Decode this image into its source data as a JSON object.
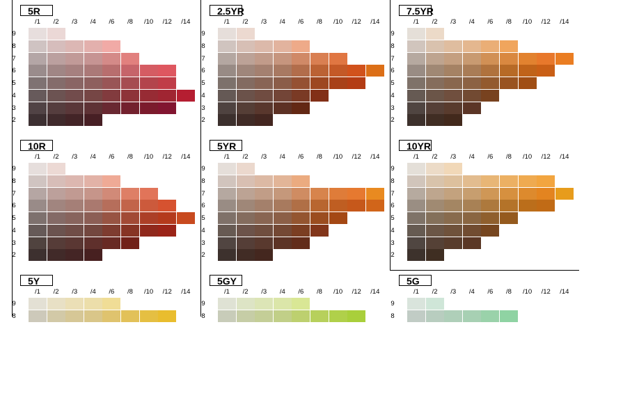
{
  "chart_data": {
    "type": "heatmap",
    "title": "",
    "xlabel": "",
    "ylabel": "",
    "chroma_labels": [
      "/1",
      "/2",
      "/3",
      "/4",
      "/6",
      "/8",
      "/10",
      "/12",
      "/14"
    ],
    "value_labels": [
      "9",
      "8",
      "7",
      "6",
      "5",
      "4",
      "3",
      "2"
    ],
    "panels": [
      {
        "hue": "5R",
        "rows": [
          [
            "#e7dedd",
            "#ebd8d6"
          ],
          [
            "#cfc3c2",
            "#d6bdbc",
            "#dcb7b4",
            "#e3b0ad",
            "#f1aaa6"
          ],
          [
            "#b4a6a6",
            "#bba09f",
            "#c19a98",
            "#c69493",
            "#d48a88",
            "#e1807e"
          ],
          [
            "#9a8c8c",
            "#a08685",
            "#a6807f",
            "#ab7978",
            "#b86e6e",
            "#c6646a",
            "#d55c63",
            "#de5760"
          ],
          [
            "#7f7272",
            "#846c6b",
            "#8a6564",
            "#8e5f5e",
            "#995556",
            "#a64c51",
            "#b3444c",
            "#c03d48"
          ],
          [
            "#675a5b",
            "#6c5352",
            "#724c4c",
            "#764645",
            "#823b3e",
            "#8e3339",
            "#972b34",
            "#a02532",
            "#b51e31"
          ],
          [
            "#514345",
            "#553d3e",
            "#5a3739",
            "#5e3235",
            "#692831",
            "#73212e",
            "#7b1b2c",
            "#821530"
          ],
          [
            "#3d3032",
            "#402a2c",
            "#432427",
            "#471f24"
          ]
        ]
      },
      {
        "hue": "2.5YR",
        "rows": [
          [
            "#e6deda",
            "#ecd9d0"
          ],
          [
            "#d0c4bf",
            "#d7bfb5",
            "#dcb9aa",
            "#e2b39e",
            "#eeaa89"
          ],
          [
            "#b4a7a1",
            "#bca297",
            "#c19b8a",
            "#c6957e",
            "#d08967",
            "#d97f52",
            "#e07642"
          ],
          [
            "#988b85",
            "#9f867b",
            "#a48070",
            "#a87962",
            "#b26d4b",
            "#bb6234",
            "#c45927",
            "#d1521c",
            "#dc6f17"
          ],
          [
            "#7d716b",
            "#836b61",
            "#886455",
            "#8b5d49",
            "#955133",
            "#9d4720",
            "#a84118",
            "#b33c14"
          ],
          [
            "#655955",
            "#6b524a",
            "#704c41",
            "#734537",
            "#7a3a25",
            "#823017"
          ],
          [
            "#4f4340",
            "#553e36",
            "#59372d",
            "#5d3124",
            "#632814"
          ],
          [
            "#3c302d",
            "#402b26",
            "#432620"
          ]
        ]
      },
      {
        "hue": "7.5YR",
        "rows": [
          [
            "#e5dfd8",
            "#ecdac8"
          ],
          [
            "#d1c5bd",
            "#d9c2ae",
            "#dfbd9f",
            "#e4b78f",
            "#eaae76",
            "#f0a55d"
          ],
          [
            "#b6a9a0",
            "#bea48f",
            "#c49f80",
            "#c89a71",
            "#d19055",
            "#d98840",
            "#e2822f",
            "#e8782b",
            "#ea7d22"
          ],
          [
            "#998c84",
            "#a08874",
            "#a58264",
            "#a97c56",
            "#b0723d",
            "#b76a26",
            "#c06319",
            "#c95f16"
          ],
          [
            "#7f7269",
            "#856d5c",
            "#89674e",
            "#8c6243",
            "#935a2e",
            "#995320",
            "#a04e14"
          ],
          [
            "#665a53",
            "#6b5548",
            "#704f3e",
            "#724a32",
            "#78421f"
          ],
          [
            "#504541",
            "#553f36",
            "#593b2d",
            "#5b3526"
          ],
          [
            "#3d312c",
            "#402d23",
            "#42291c"
          ]
        ]
      },
      {
        "hue": "10R",
        "rows": [
          [
            "#e6dedc",
            "#ecd9d4"
          ],
          [
            "#d0c4c1",
            "#d7bdb8",
            "#dcb7b0",
            "#e2b2a7",
            "#efaa96"
          ],
          [
            "#b5a6a3",
            "#bca09b",
            "#c19a92",
            "#c6958a",
            "#d18a78",
            "#de7f66",
            "#e17459"
          ],
          [
            "#998b88",
            "#a1857f",
            "#a57f77",
            "#aa796f",
            "#b66e5b",
            "#c2644a",
            "#cc5a3c",
            "#d65230"
          ],
          [
            "#7e716e",
            "#846a66",
            "#88645d",
            "#8c5e55",
            "#985443",
            "#a24a35",
            "#ac3f27",
            "#b43a1c",
            "#c84a1f"
          ],
          [
            "#665a58",
            "#6b534f",
            "#704d47",
            "#73473f",
            "#7e3c30",
            "#873424",
            "#90291c",
            "#9b2418"
          ],
          [
            "#50433f",
            "#563c38",
            "#5a3733",
            "#5f302c",
            "#682a24",
            "#712018"
          ],
          [
            "#3d302f",
            "#412a29",
            "#442525",
            "#472020"
          ]
        ]
      },
      {
        "hue": "5YR",
        "rows": [
          [
            "#e5ded9",
            "#ebd8cd"
          ],
          [
            "#d1c4bd",
            "#d8bfb2",
            "#dcb9a4",
            "#e2b598",
            "#ebab80"
          ],
          [
            "#b5a8a0",
            "#bca394",
            "#c19d87",
            "#c5987b",
            "#cf8c62",
            "#d7844c",
            "#df7c39",
            "#e67930",
            "#e98a20"
          ],
          [
            "#998c84",
            "#9f8778",
            "#a4806b",
            "#a87a5e",
            "#b06f46",
            "#b86630",
            "#bf5e22",
            "#c6581b",
            "#d1651a"
          ],
          [
            "#7f7169",
            "#846c5e",
            "#896552",
            "#8c5f47",
            "#945530",
            "#9b4d1f",
            "#a44814"
          ],
          [
            "#675a53",
            "#6c534a",
            "#704e3f",
            "#744834",
            "#7b3e22",
            "#82361a"
          ],
          [
            "#514541",
            "#553e37",
            "#59392e",
            "#5c3325",
            "#622c1a"
          ],
          [
            "#3d312d",
            "#412c25",
            "#44271f"
          ]
        ]
      },
      {
        "hue": "10YR",
        "rows": [
          [
            "#e4dfd8",
            "#ecdbc7",
            "#f1d8b8"
          ],
          [
            "#d1c5bb",
            "#d8c3ab",
            "#ddc09d",
            "#e2bc8f",
            "#e8b676",
            "#ecb063",
            "#efaa50",
            "#f2a540"
          ],
          [
            "#b6aa9f",
            "#bea68e",
            "#c3a27e",
            "#c79e6f",
            "#cf9756",
            "#d6903f",
            "#dd8a2d",
            "#e38420",
            "#e79c1c"
          ],
          [
            "#9a8e83",
            "#a08a72",
            "#a48663",
            "#a88155",
            "#ad793d",
            "#b47329",
            "#bb6e1b",
            "#c16b16"
          ],
          [
            "#7f7368",
            "#84705a",
            "#886b4d",
            "#8a6642",
            "#8f5f2d",
            "#955a1e"
          ],
          [
            "#665b52",
            "#6b5646",
            "#6f523b",
            "#714c31",
            "#76461f"
          ],
          [
            "#504641",
            "#554136",
            "#583c2c",
            "#5a3725"
          ],
          [
            "#3d322c",
            "#3f2e22"
          ]
        ]
      },
      {
        "hue": "5Y",
        "rows": [
          [
            "#e3e0d4",
            "#e8e0c5",
            "#ebdfb6",
            "#ecdeaa",
            "#f0dd96"
          ],
          [
            "#cdc9ba",
            "#d2c9a7",
            "#d6c796",
            "#d9c689",
            "#dfc36e",
            "#e2c159",
            "#e5bf42",
            "#e9bd2e"
          ]
        ]
      },
      {
        "hue": "5GY",
        "rows": [
          [
            "#dfe2d4",
            "#dde4c5",
            "#dce5b6",
            "#dbe6a9",
            "#d9e795"
          ],
          [
            "#c8ccb9",
            "#c6cda6",
            "#c4ce97",
            "#c1cf88",
            "#bdd06f",
            "#b7d05c",
            "#b0d04a",
            "#a9cf3b"
          ]
        ]
      },
      {
        "hue": "5G",
        "rows": [
          [
            "#d9e4dc",
            "#cfe6d8"
          ],
          [
            "#c1ccc5",
            "#b8cdbf",
            "#afcfb9",
            "#a7d0b3",
            "#9ad2aa",
            "#8fd3a3"
          ]
        ]
      }
    ]
  },
  "colors": {
    "background": "#ffffff",
    "border": "#000000",
    "chip_gap": "#ffffff"
  }
}
